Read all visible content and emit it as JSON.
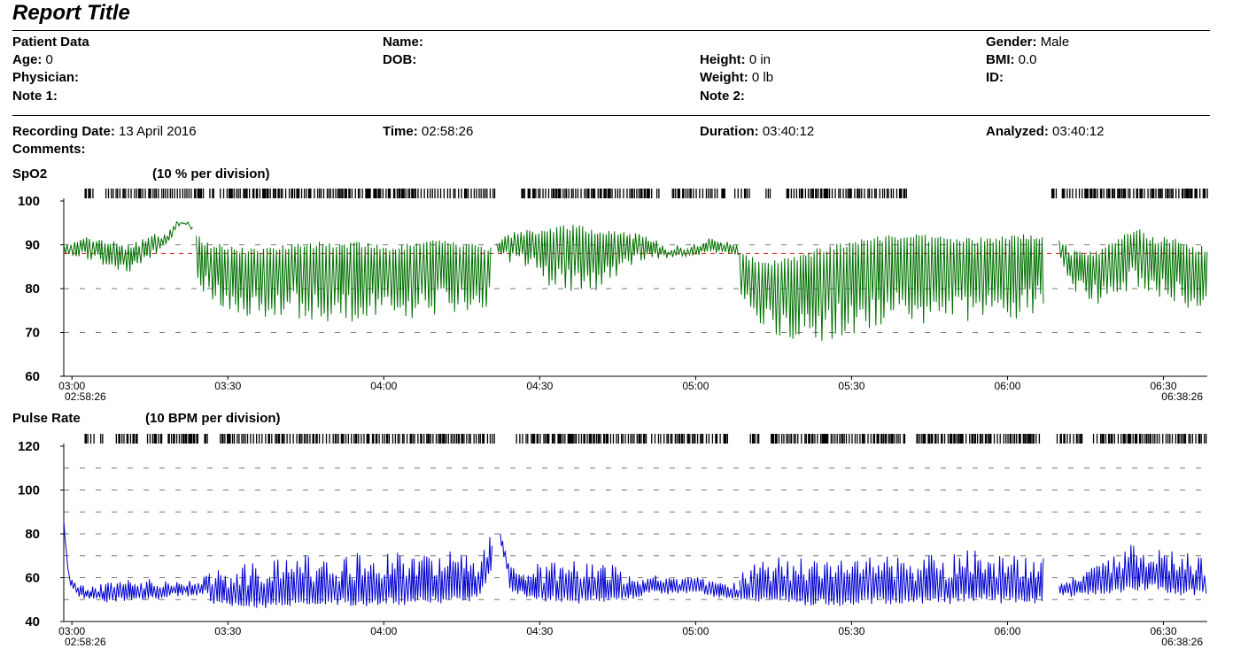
{
  "report_title": "Report Title",
  "patient": {
    "section_label": "Patient Data",
    "age_label": "Age:",
    "age": "0",
    "physician_label": "Physician:",
    "physician": "",
    "note1_label": "Note 1:",
    "note1": "",
    "name_label": "Name:",
    "name": "",
    "dob_label": "DOB:",
    "dob": "",
    "height_label": "Height:",
    "height": "0 in",
    "weight_label": "Weight:",
    "weight": "0 lb",
    "note2_label": "Note 2:",
    "note2": "",
    "gender_label": "Gender:",
    "gender": "Male",
    "bmi_label": "BMI:",
    "bmi": "0.0",
    "id_label": "ID:",
    "id": ""
  },
  "recording": {
    "date_label": "Recording Date:",
    "date": "13 April 2016",
    "time_label": "Time:",
    "time": "02:58:26",
    "duration_label": "Duration:",
    "duration": "03:40:12",
    "analyzed_label": "Analyzed:",
    "analyzed": "03:40:12",
    "comments_label": "Comments:",
    "comments": ""
  },
  "colors": {
    "spo2": "#007000",
    "pulse": "#0000d0",
    "threshold": "#e00000",
    "grid": "#777777"
  },
  "chart_data": [
    {
      "type": "line",
      "title": "SpO2",
      "division_label": "(10 %  per division)",
      "ylim": [
        60,
        100
      ],
      "y_ticks": [
        "100",
        "90",
        "80",
        "70",
        "60"
      ],
      "gridlines": [
        90,
        80,
        70
      ],
      "threshold": 88,
      "x_ticks": [
        "03:00",
        "03:30",
        "04:00",
        "04:30",
        "05:00",
        "05:30",
        "06:00",
        "06:30"
      ],
      "x_start_label": "02:58:26",
      "x_end_label": "06:38:26",
      "series": [
        {
          "segments": [
            {
              "t": [
                0,
                2,
                4,
                6,
                8,
                10,
                12,
                14,
                16,
                18,
                20,
                22,
                24,
                25
              ],
              "base": [
                90,
                90.5,
                91,
                91.5,
                91,
                90,
                89.5,
                90,
                91,
                92,
                92.5,
                95,
                94.5,
                94
              ],
              "dip": [
                2,
                3,
                4,
                5,
                6,
                7,
                6,
                5,
                5,
                4,
                3,
                0,
                0,
                0
              ]
            },
            {
              "t": [
                25.5,
                28,
                32,
                36,
                40,
                44,
                48,
                52,
                56,
                60,
                64,
                68,
                72,
                76,
                80,
                82.5
              ],
              "base": [
                92,
                90,
                89,
                88.5,
                89,
                90,
                90,
                90,
                90,
                89.5,
                89,
                90,
                90.5,
                90,
                89.5,
                89
              ],
              "dip": [
                10,
                12,
                14,
                15,
                15,
                16,
                17,
                17,
                17,
                16,
                16,
                17,
                16,
                15,
                14,
                12
              ]
            },
            {
              "t": [
                83.3,
                86,
                90,
                94,
                98,
                102,
                106,
                110,
                113,
                116,
                120,
                124,
                128,
                130
              ],
              "base": [
                91,
                92,
                93,
                93.5,
                94,
                93,
                93,
                92,
                91,
                89,
                89.5,
                91,
                90,
                89
              ],
              "dip": [
                3,
                6,
                8,
                13,
                14,
                14,
                11,
                6,
                4,
                2,
                2,
                3,
                2,
                2
              ]
            },
            {
              "t": [
                130,
                134,
                138,
                142,
                146,
                150,
                154,
                158,
                162,
                166,
                170,
                174,
                178,
                182,
                186,
                188.5
              ],
              "base": [
                88,
                86,
                86,
                87,
                89,
                90,
                91,
                91.5,
                92,
                91.5,
                91,
                91,
                91,
                91.5,
                92,
                91
              ],
              "dip": [
                10,
                14,
                17,
                19,
                20,
                20,
                20,
                20,
                19,
                19,
                18,
                18,
                18,
                18,
                17,
                16
              ]
            },
            {
              "t": [
                191.5,
                194,
                198,
                202,
                206,
                210,
                214,
                218,
                220
              ],
              "base": [
                91,
                88,
                88,
                90,
                93.5,
                91,
                91,
                89,
                89
              ],
              "dip": [
                4,
                8,
                11,
                13,
                12,
                13,
                14,
                14,
                13
              ]
            }
          ]
        }
      ]
    },
    {
      "type": "line",
      "title": "Pulse Rate",
      "division_label": "(10 BPM per division)",
      "ylim": [
        40,
        120
      ],
      "y_ticks": [
        "120",
        "100",
        "80",
        "60",
        "40"
      ],
      "gridlines": [
        110,
        100,
        90,
        80,
        70,
        60,
        50
      ],
      "x_ticks": [
        "03:00",
        "03:30",
        "04:00",
        "04:30",
        "05:00",
        "05:30",
        "06:00",
        "06:30"
      ],
      "x_start_label": "02:58:26",
      "x_end_label": "06:38:26",
      "series": [
        {
          "segments": [
            {
              "t": [
                0,
                0.5,
                1,
                2,
                4,
                8,
                12,
                16,
                20,
                24,
                27,
                28
              ],
              "base": [
                86,
                72,
                60,
                55,
                52,
                51,
                52,
                52,
                53,
                54,
                55,
                56
              ],
              "amp": [
                0,
                0,
                2,
                3,
                4,
                6,
                7,
                7,
                6,
                5,
                5,
                6
              ]
            },
            {
              "t": [
                28,
                32,
                36,
                40,
                44,
                48,
                52,
                56,
                60,
                64,
                68,
                72,
                76,
                80,
                82.5
              ],
              "base": [
                51,
                50,
                50,
                50,
                51,
                51,
                51,
                51,
                51,
                52,
                52,
                52,
                53,
                54,
                68
              ],
              "amp": [
                10,
                14,
                16,
                17,
                17,
                18,
                18,
                19,
                19,
                19,
                19,
                18,
                18,
                16,
                12
              ]
            },
            {
              "t": [
                84,
                86,
                90,
                94,
                98,
                102,
                106,
                110,
                114,
                118,
                122,
                126,
                130
              ],
              "base": [
                79,
                56,
                53,
                52,
                52,
                52,
                52,
                53,
                55,
                54,
                55,
                53,
                52
              ],
              "amp": [
                2,
                8,
                12,
                14,
                14,
                14,
                13,
                9,
                6,
                5,
                6,
                5,
                5
              ]
            },
            {
              "t": [
                130,
                134,
                138,
                142,
                146,
                150,
                154,
                158,
                162,
                166,
                170,
                174,
                178,
                182,
                186,
                188.5
              ],
              "base": [
                52,
                52,
                52,
                51,
                51,
                51,
                51,
                51,
                51,
                52,
                52,
                53,
                53,
                52,
                52,
                52
              ],
              "amp": [
                10,
                14,
                16,
                17,
                17,
                17,
                17,
                17,
                17,
                17,
                17,
                18,
                18,
                17,
                17,
                17
              ]
            },
            {
              "t": [
                191.5,
                194,
                198,
                202,
                206,
                210,
                214,
                218,
                220
              ],
              "base": [
                54,
                54,
                55,
                56,
                58,
                58,
                56,
                55,
                56
              ],
              "amp": [
                4,
                8,
                12,
                15,
                16,
                16,
                15,
                14,
                12
              ]
            }
          ]
        }
      ]
    }
  ]
}
